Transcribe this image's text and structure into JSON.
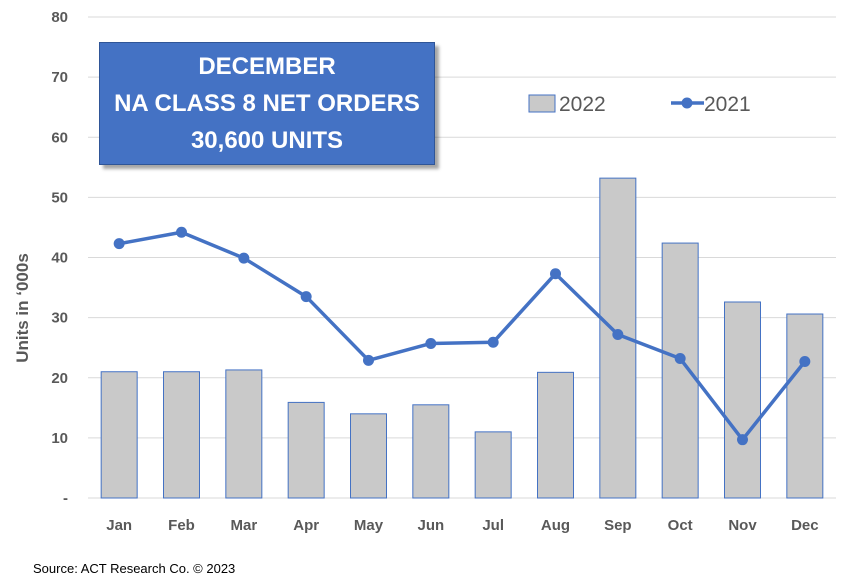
{
  "chart_data": {
    "type": "bar",
    "title_lines": [
      "DECEMBER",
      "NA CLASS 8 NET ORDERS",
      "30,600  UNITS"
    ],
    "ylabel": "Units in ‘000s",
    "ylim": [
      0,
      80
    ],
    "yticks": [
      {
        "value": 0,
        "label": "-"
      },
      {
        "value": 10,
        "label": "10"
      },
      {
        "value": 20,
        "label": "20"
      },
      {
        "value": 30,
        "label": "30"
      },
      {
        "value": 40,
        "label": "40"
      },
      {
        "value": 50,
        "label": "50"
      },
      {
        "value": 60,
        "label": "60"
      },
      {
        "value": 70,
        "label": "70"
      },
      {
        "value": 80,
        "label": "80"
      }
    ],
    "categories": [
      "Jan",
      "Feb",
      "Mar",
      "Apr",
      "May",
      "Jun",
      "Jul",
      "Aug",
      "Sep",
      "Oct",
      "Nov",
      "Dec"
    ],
    "series": [
      {
        "name": "2022",
        "type": "bar",
        "color": "#c9c9c9",
        "edge": "#4472c4",
        "values": [
          21.0,
          21.0,
          21.3,
          15.9,
          14.0,
          15.5,
          11.0,
          20.9,
          53.2,
          42.4,
          32.6,
          30.6
        ]
      },
      {
        "name": "2021",
        "type": "line",
        "color": "#4472c4",
        "values": [
          42.3,
          44.2,
          39.9,
          33.5,
          22.9,
          25.7,
          25.9,
          37.3,
          27.2,
          23.2,
          9.7,
          22.7
        ]
      }
    ],
    "grid": true,
    "legend": "top-right",
    "source": "Source: ACT Research Co. © 2023"
  }
}
